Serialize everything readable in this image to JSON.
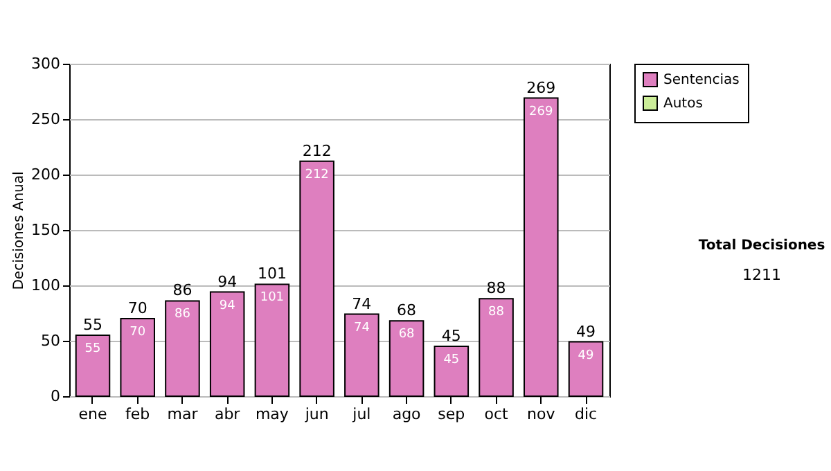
{
  "chart_data": {
    "type": "bar",
    "ylabel": "Decisiones Anual",
    "categories": [
      "ene",
      "feb",
      "mar",
      "abr",
      "may",
      "jun",
      "jul",
      "ago",
      "sep",
      "oct",
      "nov",
      "dic"
    ],
    "series": [
      {
        "name": "Sentencias",
        "color": "#de7fbf",
        "values": [
          55,
          70,
          86,
          94,
          101,
          212,
          74,
          68,
          45,
          88,
          269,
          49
        ]
      },
      {
        "name": "Autos",
        "color": "#ccee99",
        "values": [
          null,
          null,
          null,
          null,
          null,
          null,
          null,
          null,
          null,
          null,
          null,
          null
        ]
      }
    ],
    "ylim": [
      0,
      300
    ],
    "yticks": [
      0,
      50,
      100,
      150,
      200,
      250,
      300
    ],
    "grid": "y",
    "legend": "right",
    "data_labels": true,
    "totals": [
      "55",
      "70",
      "86",
      "94",
      "101",
      "212",
      "74",
      "68",
      "45",
      "88",
      "269",
      "49"
    ],
    "annotations": [
      "Total Decisiones",
      "1211"
    ]
  }
}
